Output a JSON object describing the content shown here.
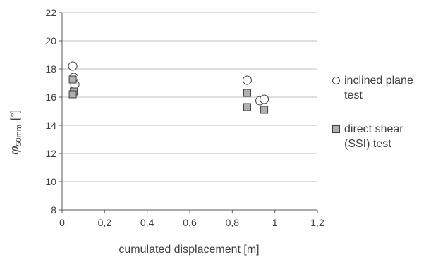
{
  "chart_data": {
    "type": "scatter",
    "xlabel": "cumulated displacement [m]",
    "ylabel_symbol": "φ",
    "ylabel_subscript": "50mm",
    "ylabel_unit": "[°]",
    "xlim": [
      0,
      1.2
    ],
    "ylim": [
      8,
      22
    ],
    "xticks": [
      "0",
      "0,2",
      "0,4",
      "0,6",
      "0,8",
      "1",
      "1,2"
    ],
    "xtick_values": [
      0,
      0.2,
      0.4,
      0.6,
      0.8,
      1.0,
      1.2
    ],
    "yticks": [
      "8",
      "10",
      "12",
      "14",
      "16",
      "18",
      "20",
      "22"
    ],
    "ytick_values": [
      8,
      10,
      12,
      14,
      16,
      18,
      20,
      22
    ],
    "grid": "horizontal",
    "legend_placement": "right",
    "series": [
      {
        "name": "inclined plane test",
        "marker": "circle",
        "color": "#ffffff",
        "points": [
          {
            "x": 0.05,
            "y": 18.2
          },
          {
            "x": 0.055,
            "y": 17.4
          },
          {
            "x": 0.06,
            "y": 16.9
          },
          {
            "x": 0.87,
            "y": 17.2
          },
          {
            "x": 0.93,
            "y": 15.75
          },
          {
            "x": 0.95,
            "y": 15.85
          }
        ]
      },
      {
        "name": "direct shear (SSI) test",
        "marker": "square",
        "color": "#b0b0b0",
        "points": [
          {
            "x": 0.05,
            "y": 17.25
          },
          {
            "x": 0.055,
            "y": 16.4
          },
          {
            "x": 0.05,
            "y": 16.2
          },
          {
            "x": 0.87,
            "y": 16.3
          },
          {
            "x": 0.87,
            "y": 15.3
          },
          {
            "x": 0.95,
            "y": 15.1
          }
        ]
      }
    ]
  },
  "legend": {
    "item1_line1": "inclined plane",
    "item1_line2": "test",
    "item2_line1": "direct shear",
    "item2_line2": "(SSI) test"
  }
}
